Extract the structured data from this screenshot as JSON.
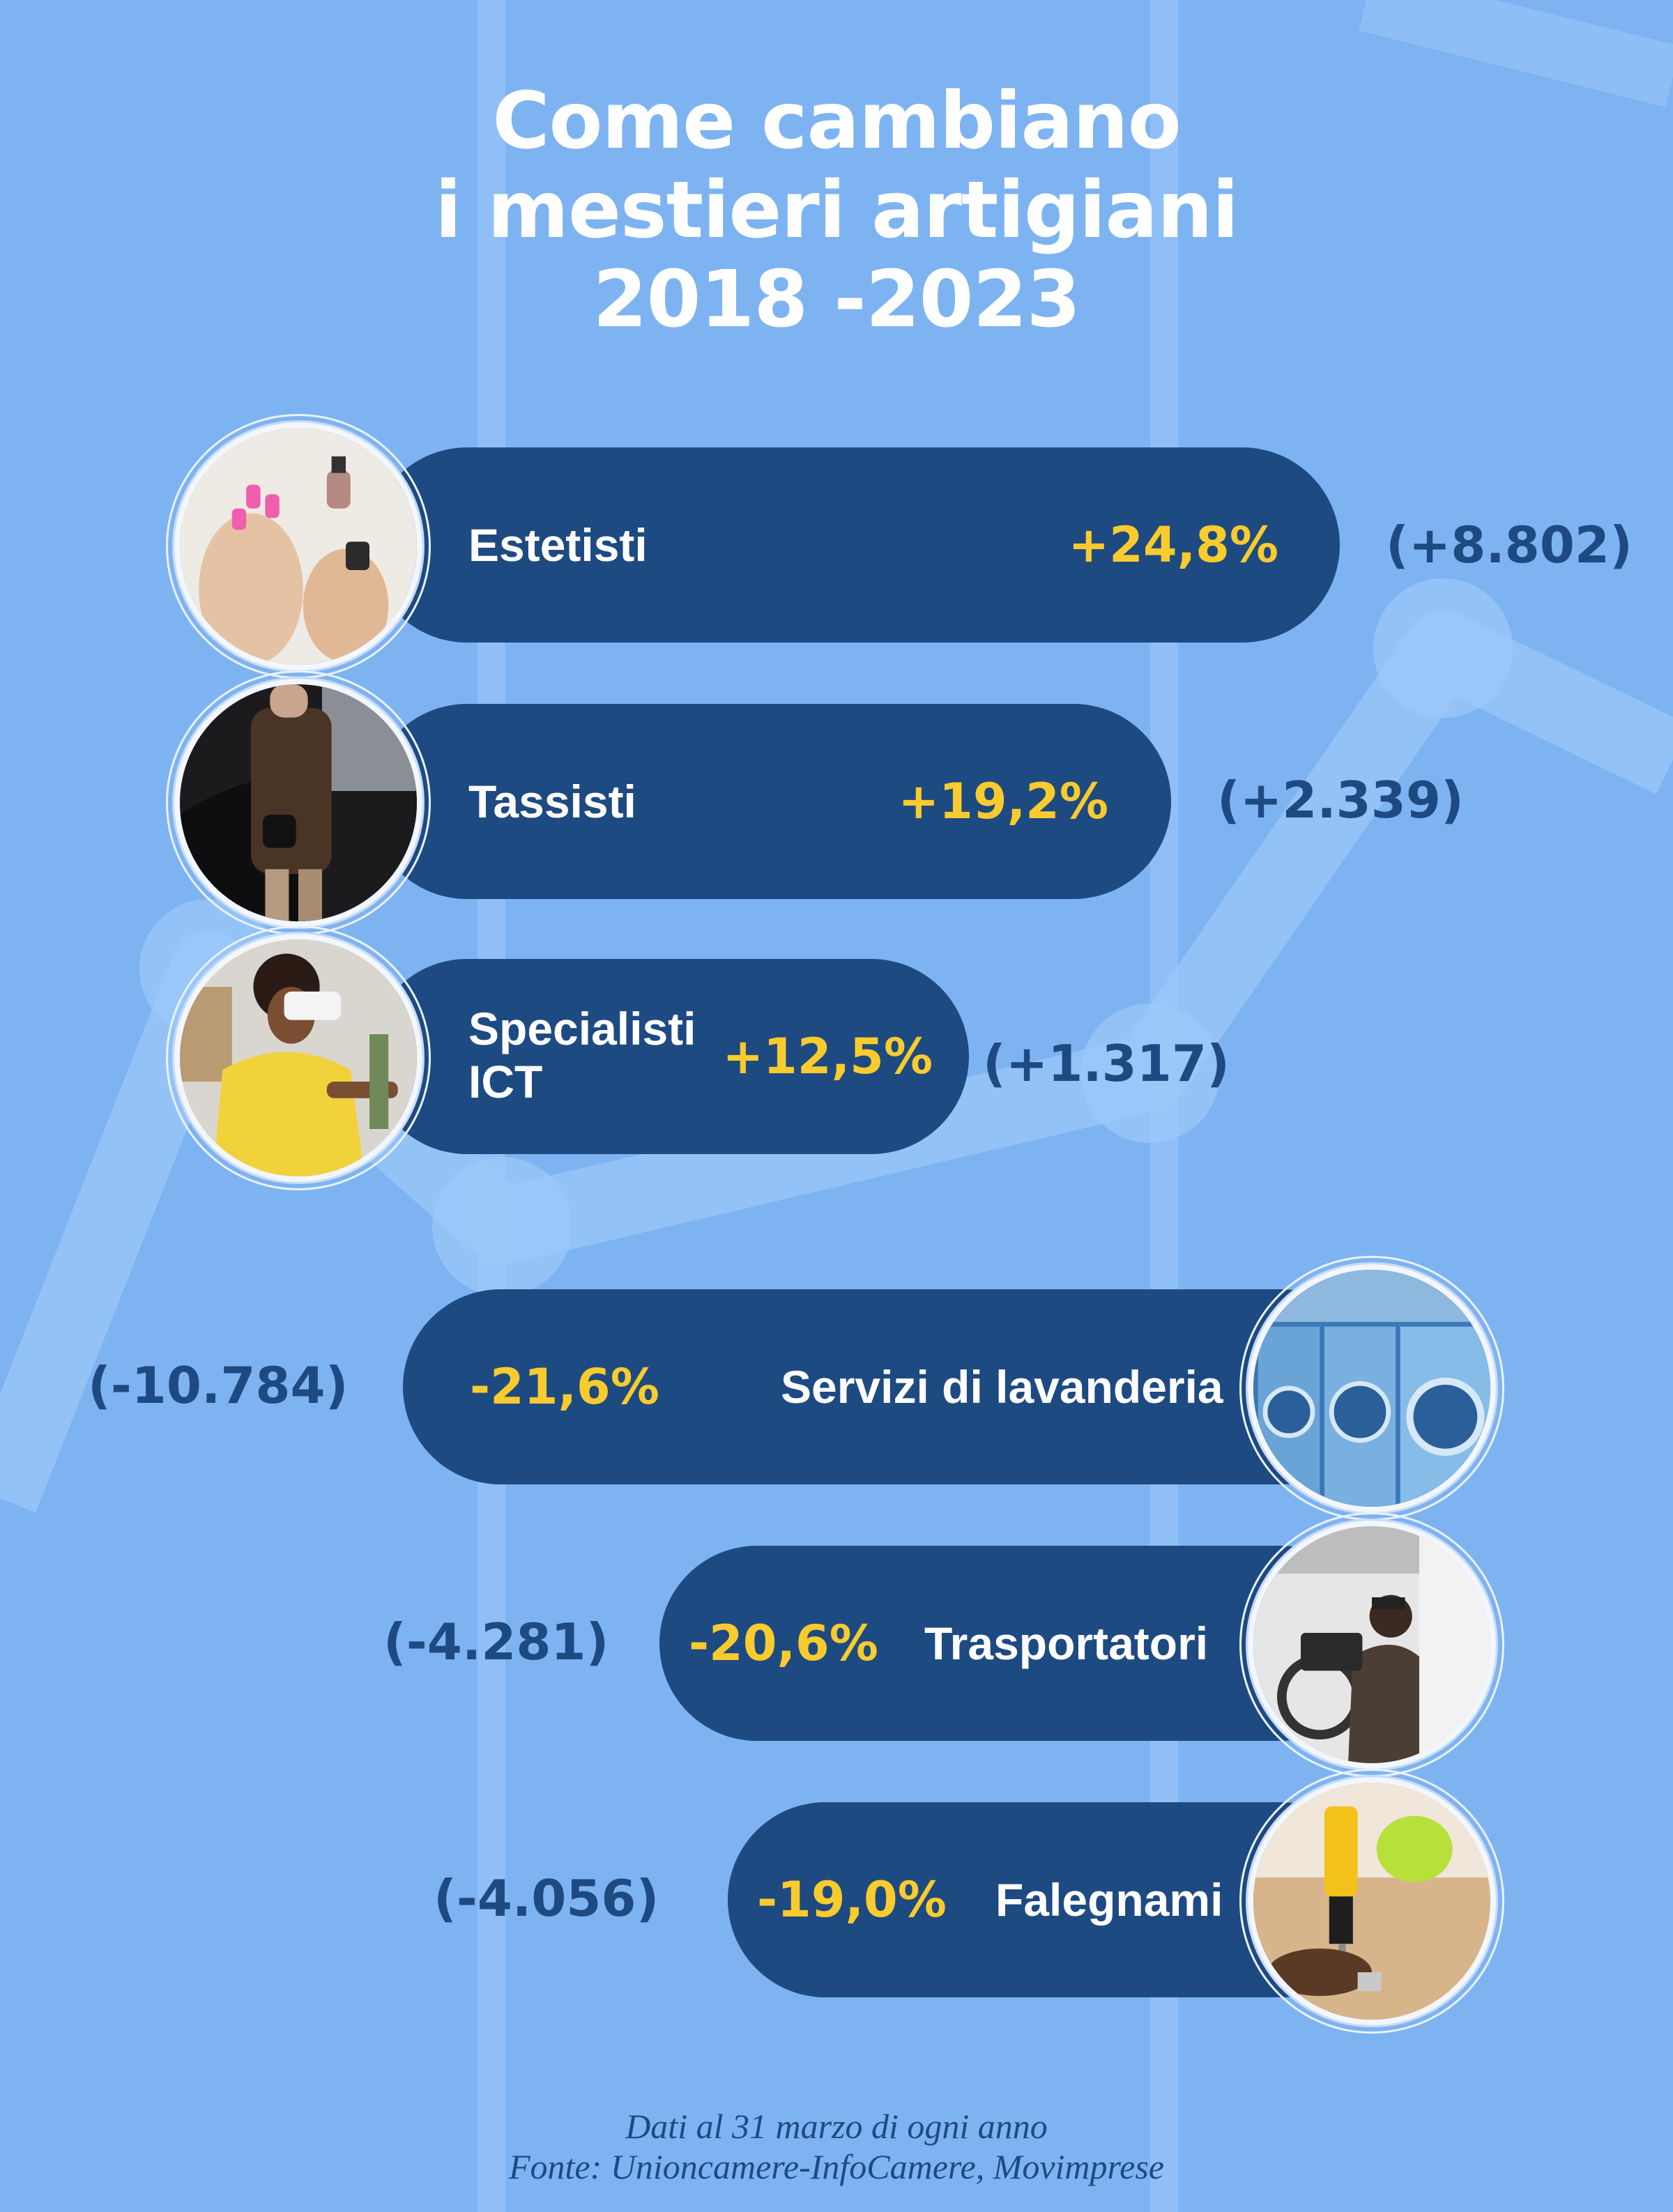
{
  "title": {
    "line1": "Come cambiano",
    "line2": "i mestieri artigiani",
    "line3": "2018 -2023"
  },
  "chart_data": {
    "type": "bar",
    "title": "Come cambiano i mestieri artigiani 2018 -2023",
    "categories": [
      "Estetisti",
      "Tassisti",
      "Specialisti ICT",
      "Servizi di lavanderia",
      "Trasportatori",
      "Falegnami"
    ],
    "values": [
      24.8,
      19.2,
      12.5,
      -21.6,
      -20.6,
      -19.0
    ],
    "value_labels": [
      "+24,8%",
      "+19,2%",
      "+12,5%",
      "-21,6%",
      "-20,6%",
      "-19,0%"
    ],
    "absolute_labels": [
      "(+8.802)",
      "(+2.339)",
      "(+1.317)",
      "(-10.784)",
      "(-4.281)",
      "(-4.056)"
    ],
    "absolute_values": [
      8802,
      2339,
      1317,
      -10784,
      -4281,
      -4056
    ],
    "unit": "%"
  },
  "items": [
    {
      "name_line1": "Estetisti",
      "name_line2": "",
      "pct": "+24,8%",
      "abs": "(+8.802)",
      "photo": "nail-polish-photo"
    },
    {
      "name_line1": "Tassisti",
      "name_line2": "",
      "pct": "+19,2%",
      "abs": "(+2.339)",
      "photo": "taxi-passenger-photo"
    },
    {
      "name_line1": "Specialisti",
      "name_line2": "ICT",
      "pct": "+12,5%",
      "abs": "(+1.317)",
      "photo": "vr-headset-photo"
    },
    {
      "name_line1": "Servizi di lavanderia",
      "name_line2": "",
      "pct": "-21,6%",
      "abs": "(-10.784)",
      "photo": "laundry-machines-photo"
    },
    {
      "name_line1": "Trasportatori",
      "name_line2": "",
      "pct": "-20,6%",
      "abs": "(-4.281)",
      "photo": "van-driver-photo"
    },
    {
      "name_line1": "Falegnami",
      "name_line2": "",
      "pct": "-19,0%",
      "abs": "(-4.056)",
      "photo": "drill-carpenter-photo"
    }
  ],
  "footer": {
    "line1": "Dati al 31 marzo di ogni anno",
    "line2": "Fonte: Unioncamere-InfoCamere, Movimprese"
  },
  "colors": {
    "background": "#7eb3f2",
    "bar": "#1e4a82",
    "percent": "#f9cb2c",
    "absolute": "#1e4a82",
    "title": "#ffffff"
  }
}
